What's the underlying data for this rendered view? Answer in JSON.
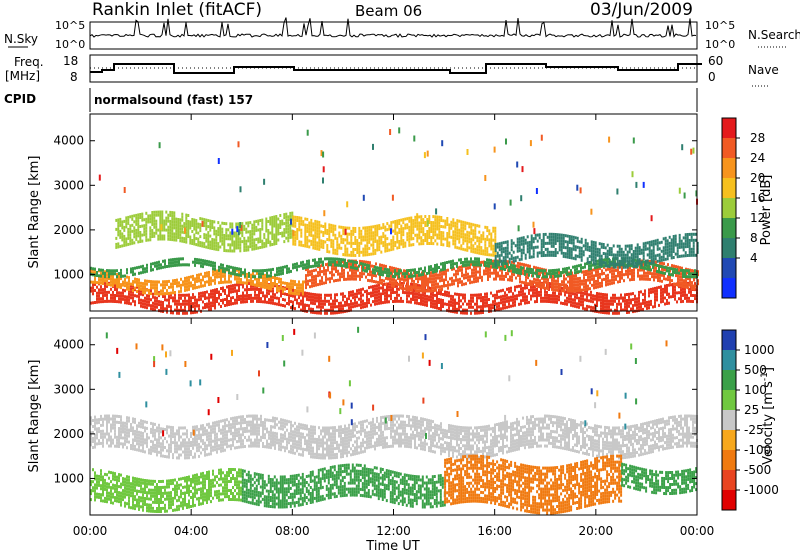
{
  "header": {
    "title": "Rankin Inlet (fitACF)",
    "beam": "Beam 06",
    "date": "03/Jun/2009"
  },
  "top_panels": {
    "nsky_label": "N.Sky",
    "nsearch_label": "N.Search",
    "nsky_ticks": [
      "10^5",
      "10^0"
    ],
    "nsky_right_ticks": [
      "10^5",
      "10^0"
    ],
    "freq_label": "Freq.",
    "freq_unit": "[MHz]",
    "freq_ticks": [
      "18",
      "8"
    ],
    "nave_label": "Nave",
    "nave_ticks": [
      "60",
      "0"
    ],
    "cpid_label": "CPID",
    "cpid_text": "normalsound (fast) 157"
  },
  "x_axis": {
    "label": "Time UT",
    "ticks": [
      "00:00",
      "04:00",
      "08:00",
      "12:00",
      "16:00",
      "20:00",
      "00:00"
    ]
  },
  "chart_data": [
    {
      "type": "heatmap",
      "panel": "power",
      "ylabel": "Slant Range [km]",
      "yticks": [
        1000,
        2000,
        3000,
        4000
      ],
      "ylim": [
        180,
        4600
      ],
      "xlim_hours": [
        0,
        24
      ],
      "colorbar": {
        "label": "Power [dB]",
        "ticks": [
          "28",
          "24",
          "20",
          "16",
          "12",
          "8",
          "4"
        ],
        "colors": [
          "#e41a1c",
          "#f15a24",
          "#f7941d",
          "#f6c01e",
          "#9ccc3a",
          "#3a9a4a",
          "#2f7f6f",
          "#2049b4",
          "#1030ff"
        ]
      },
      "bands": [
        {
          "t0": 0.0,
          "t1": 24.0,
          "r0": 180,
          "r1": 700,
          "color": "#e8361e"
        },
        {
          "t0": 0.0,
          "t1": 8.5,
          "r0": 600,
          "r1": 1000,
          "color": "#f7941d"
        },
        {
          "t0": 8.5,
          "t1": 24.0,
          "r0": 700,
          "r1": 1200,
          "color": "#f15a24"
        },
        {
          "t0": 0.0,
          "t1": 24.0,
          "r0": 1000,
          "r1": 1250,
          "color": "#3a9a4a"
        },
        {
          "t0": 1.0,
          "t1": 8.0,
          "r0": 1600,
          "r1": 2300,
          "color": "#9ccc3a"
        },
        {
          "t0": 8.0,
          "t1": 16.0,
          "r0": 1500,
          "r1": 2200,
          "color": "#f6c01e"
        },
        {
          "t0": 16.0,
          "t1": 24.0,
          "r0": 1200,
          "r1": 1800,
          "color": "#2f7f6f"
        }
      ]
    },
    {
      "type": "heatmap",
      "panel": "velocity",
      "ylabel": "Slant Range [km]",
      "yticks": [
        1000,
        2000,
        3000,
        4000
      ],
      "ylim": [
        180,
        4600
      ],
      "xlim_hours": [
        0,
        24
      ],
      "colorbar": {
        "label": "Velocity [m s^-1]",
        "ticks": [
          "1000",
          "500",
          "100",
          "25",
          "-25",
          "-100",
          "-500",
          "-1000"
        ],
        "colors": [
          "#2040b0",
          "#2f8f9f",
          "#3aa048",
          "#70c840",
          "#c8c8c8",
          "#f7a81d",
          "#f07a10",
          "#e84420",
          "#e00000"
        ]
      },
      "bands": [
        {
          "t0": 0.0,
          "t1": 24.0,
          "r0": 1500,
          "r1": 2300,
          "color": "#c8c8c8"
        },
        {
          "t0": 0.0,
          "t1": 6.0,
          "r0": 350,
          "r1": 1100,
          "color": "#70c840"
        },
        {
          "t0": 6.0,
          "t1": 14.0,
          "r0": 400,
          "r1": 1200,
          "color": "#3aa048"
        },
        {
          "t0": 14.0,
          "t1": 21.0,
          "r0": 300,
          "r1": 1400,
          "color": "#f07a10"
        },
        {
          "t0": 21.0,
          "t1": 24.0,
          "r0": 700,
          "r1": 1300,
          "color": "#3aa048"
        }
      ]
    }
  ]
}
